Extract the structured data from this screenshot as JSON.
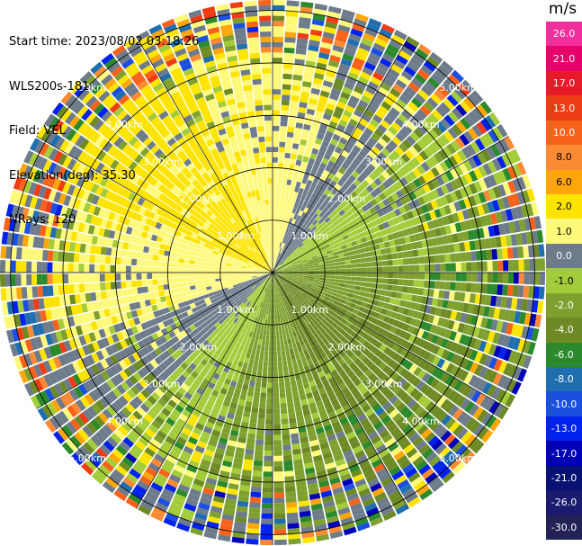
{
  "info": {
    "start_time": "Start time: 2023/08/02 03:18:26",
    "instrument": "WLS200s-181",
    "field": "Field: VEL",
    "elevation": "Elevation(deg): 35.30",
    "nrays": "NRays: 120"
  },
  "colorbar": {
    "unit": "m/s",
    "bins": [
      {
        "label": "26.0",
        "color": "#f52e9d"
      },
      {
        "label": "21.0",
        "color": "#e8006a"
      },
      {
        "label": "17.0",
        "color": "#e8192b"
      },
      {
        "label": "13.0",
        "color": "#f03c14"
      },
      {
        "label": "10.0",
        "color": "#f9621b"
      },
      {
        "label": "8.0",
        "color": "#fb8a34"
      },
      {
        "label": "6.0",
        "color": "#fda60a"
      },
      {
        "label": "2.0",
        "color": "#fde400"
      },
      {
        "label": "1.0",
        "color": "#fff97a"
      },
      {
        "label": "0.0",
        "color": "#6e7b8b"
      },
      {
        "label": "-1.0",
        "color": "#a4cc3a"
      },
      {
        "label": "-2.0",
        "color": "#7fa02e"
      },
      {
        "label": "-4.0",
        "color": "#6d8a25"
      },
      {
        "label": "-6.0",
        "color": "#2b8a2b"
      },
      {
        "label": "-8.0",
        "color": "#1f6fb0"
      },
      {
        "label": "-10.0",
        "color": "#1a4fe0"
      },
      {
        "label": "-13.0",
        "color": "#0022ee"
      },
      {
        "label": "-17.0",
        "color": "#0000b8"
      },
      {
        "label": "-21.0",
        "color": "#081272"
      },
      {
        "label": "-26.0",
        "color": "#1a1a6e"
      },
      {
        "label": "-30.0",
        "color": "#222255"
      }
    ]
  },
  "chart_data": {
    "type": "ppi",
    "title": "Start time: 2023/08/02 03:18:26 WLS200s-181 Field: VEL Elevation(deg): 35.30",
    "field": "VEL",
    "unit": "m/s",
    "elevation_deg": 35.3,
    "nrays": 120,
    "max_range_km": 5.2,
    "range_rings_km": [
      1.0,
      2.0,
      3.0,
      4.0,
      5.0
    ],
    "ring_labels": [
      "1.00km",
      "2.00km",
      "3.00km",
      "4.00km",
      "5.00km"
    ],
    "spoke_angles_deg": [
      0,
      30,
      60,
      90,
      120,
      150,
      180,
      210,
      240,
      270,
      300,
      330
    ],
    "velocity_pattern": {
      "description": "approaching (negative, green) flow to the south-east, receding (positive, yellow) flow to the north-west, zero-velocity gray band separating them",
      "flow_toward_azimuth_deg": 315,
      "flow_speed_mps": 2.2,
      "cval": [
        -30,
        -26,
        -21,
        -17,
        -13,
        -10,
        -8,
        -6,
        -4,
        -2,
        -1,
        0,
        1,
        2,
        6,
        8,
        10,
        13,
        17,
        21,
        26
      ]
    }
  }
}
